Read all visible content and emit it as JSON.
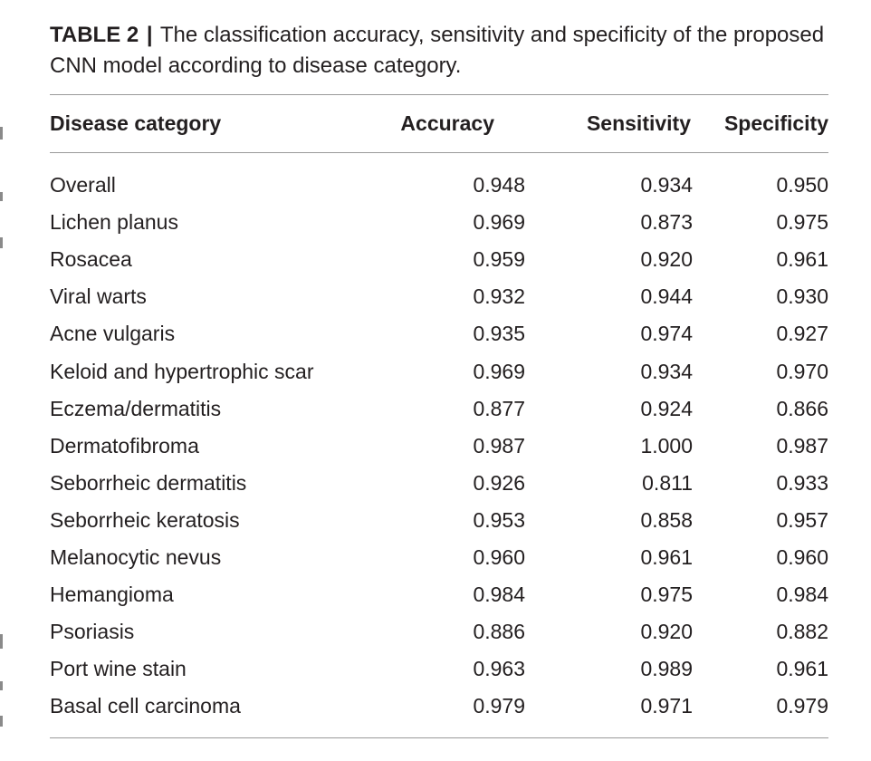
{
  "caption": {
    "label": "TABLE 2",
    "separator": "|",
    "text": "The classification accuracy, sensitivity and specificity of the proposed CNN model according to disease category."
  },
  "table": {
    "headers": [
      "Disease category",
      "Accuracy",
      "Sensitivity",
      "Specificity"
    ],
    "rows": [
      [
        "Overall",
        "0.948",
        "0.934",
        "0.950"
      ],
      [
        "Lichen planus",
        "0.969",
        "0.873",
        "0.975"
      ],
      [
        "Rosacea",
        "0.959",
        "0.920",
        "0.961"
      ],
      [
        "Viral warts",
        "0.932",
        "0.944",
        "0.930"
      ],
      [
        "Acne vulgaris",
        "0.935",
        "0.974",
        "0.927"
      ],
      [
        "Keloid and hypertrophic scar",
        "0.969",
        "0.934",
        "0.970"
      ],
      [
        "Eczema/dermatitis",
        "0.877",
        "0.924",
        "0.866"
      ],
      [
        "Dermatofibroma",
        "0.987",
        "1.000",
        "0.987"
      ],
      [
        "Seborrheic dermatitis",
        "0.926",
        "0.811",
        "0.933"
      ],
      [
        "Seborrheic keratosis",
        "0.953",
        "0.858",
        "0.957"
      ],
      [
        "Melanocytic nevus",
        "0.960",
        "0.961",
        "0.960"
      ],
      [
        "Hemangioma",
        "0.984",
        "0.975",
        "0.984"
      ],
      [
        "Psoriasis",
        "0.886",
        "0.920",
        "0.882"
      ],
      [
        "Port wine stain",
        "0.963",
        "0.989",
        "0.961"
      ],
      [
        "Basal cell carcinoma",
        "0.979",
        "0.971",
        "0.979"
      ]
    ]
  }
}
